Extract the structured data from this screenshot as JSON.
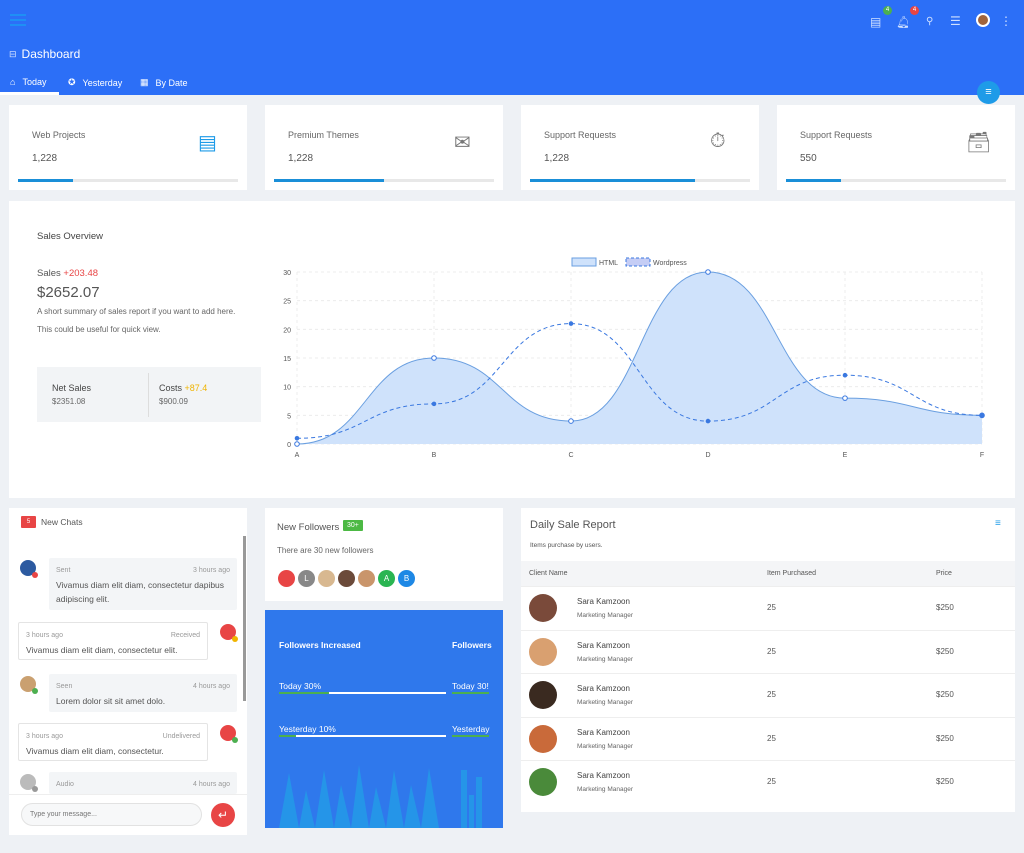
{
  "header": {
    "title": "Dashboard",
    "chat_badge": "4",
    "notif_badge": "4",
    "tabs": [
      {
        "label": "Today",
        "active": true
      },
      {
        "label": "Yesterday"
      },
      {
        "label": "By Date"
      }
    ],
    "accent": "#2c6ff7"
  },
  "stats": [
    {
      "title": "Web Projects",
      "value": "1,228",
      "progress": 0.25,
      "icon": "notes-icon"
    },
    {
      "title": "Premium Themes",
      "value": "1,228",
      "progress": 0.5,
      "icon": "envelope-open-icon"
    },
    {
      "title": "Support Requests",
      "value": "1,228",
      "progress": 0.75,
      "icon": "stopwatch-icon"
    },
    {
      "title": "Support Requests",
      "value": "550",
      "progress": 0.25,
      "icon": "inbox-tray-icon"
    }
  ],
  "sales": {
    "title": "Sales Overview",
    "label": "Sales",
    "delta": "+203.48",
    "amount": "$2652.07",
    "desc1": "A short summary of sales report if you want to add here.",
    "desc2": "This could be useful for quick view.",
    "net_label": "Net Sales",
    "net_value": "$2351.08",
    "cost_label": "Costs",
    "cost_delta": "+87.4",
    "cost_value": "$900.09"
  },
  "chart_data": {
    "type": "area",
    "categories": [
      "A",
      "B",
      "C",
      "D",
      "E",
      "F"
    ],
    "ylim": [
      0,
      30
    ],
    "yticks": [
      0,
      5,
      10,
      15,
      20,
      25,
      30
    ],
    "grid": true,
    "legend": "top",
    "series": [
      {
        "name": "HTML",
        "values": [
          0,
          15,
          4,
          30,
          8,
          5
        ],
        "style": "filled solid"
      },
      {
        "name": "Wordpress",
        "values": [
          1,
          7,
          21,
          4,
          12,
          5
        ],
        "style": "dashed"
      }
    ]
  },
  "chats": {
    "count": "5",
    "title": "New Chats",
    "input_placeholder": "Type your message...",
    "messages": [
      {
        "side": "left",
        "status": "Sent",
        "time": "3 hours ago",
        "text": "Vivamus diam elit diam, consectetur dapibus adipiscing elit."
      },
      {
        "side": "right",
        "status": "Received",
        "time": "3 hours ago",
        "text": "Vivamus diam elit diam, consectetur elit."
      },
      {
        "side": "left",
        "status": "Seen",
        "time": "4 hours ago",
        "text": "Lorem dolor sit sit amet dolo."
      },
      {
        "side": "right",
        "status": "Undelivered",
        "time": "3 hours ago",
        "text": "Vivamus diam elit diam, consectetur."
      },
      {
        "side": "left",
        "status": "Audio",
        "time": "4 hours ago",
        "text": ""
      }
    ]
  },
  "followers": {
    "title": "New Followers",
    "badge": "30+",
    "subtitle": "There are 30 new followers",
    "avatars": [
      "",
      "L",
      "",
      "",
      "",
      "A",
      "B"
    ]
  },
  "followers_card": {
    "title": "Followers Increased",
    "title2": "Followers",
    "today": "Today 30%",
    "today2": "Today 30!",
    "today_pct": 30,
    "yesterday": "Yesterday 10%",
    "yesterday2": "Yesterday",
    "yesterday_pct": 10
  },
  "report": {
    "title": "Daily Sale Report",
    "subtitle": "Items purchase by users.",
    "columns": [
      "Client Name",
      "Item Purchased",
      "Price"
    ],
    "rows": [
      {
        "name": "Sara Kamzoon",
        "role": "Marketing Manager",
        "qty": "25",
        "price": "$250"
      },
      {
        "name": "Sara Kamzoon",
        "role": "Marketing Manager",
        "qty": "25",
        "price": "$250"
      },
      {
        "name": "Sara Kamzoon",
        "role": "Marketing Manager",
        "qty": "25",
        "price": "$250"
      },
      {
        "name": "Sara Kamzoon",
        "role": "Marketing Manager",
        "qty": "25",
        "price": "$250"
      },
      {
        "name": "Sara Kamzoon",
        "role": "Marketing Manager",
        "qty": "25",
        "price": "$250"
      }
    ]
  }
}
